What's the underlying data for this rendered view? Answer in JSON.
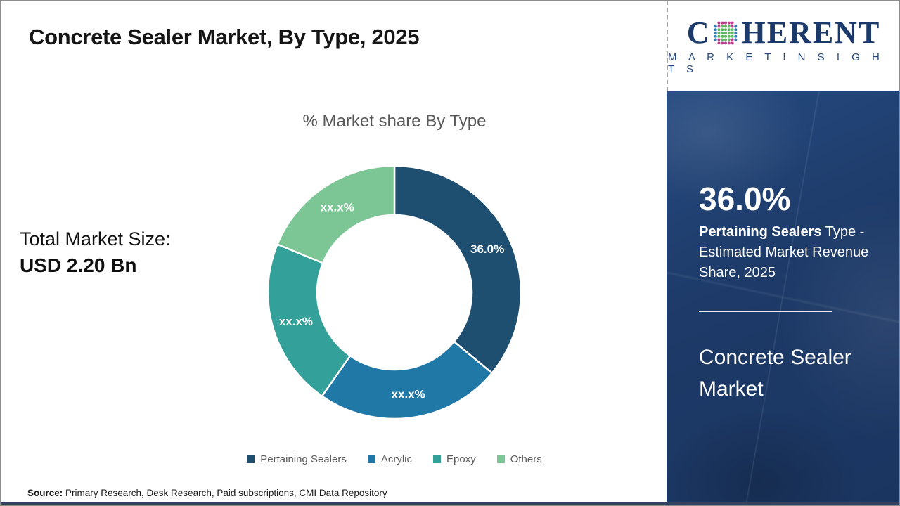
{
  "page": {
    "title": "Concrete Sealer Market, By Type, 2025",
    "source_label": "Source:",
    "source_text": " Primary Research, Desk Research, Paid subscriptions, CMI Data Repository"
  },
  "logo": {
    "name_pre": "C",
    "name_post": "HERENT",
    "subtitle": "M A R K E T   I N S I G H T S",
    "text_color": "#1b3a6b",
    "globe_colors": {
      "inner": "#5cb85c",
      "ring_top_bottom": "#c23c8e",
      "ring_sides": "#2e7db3"
    }
  },
  "left_panel": {
    "label": "Total Market Size:",
    "value": "USD 2.20 Bn"
  },
  "sidebar": {
    "stat_value": "36.0%",
    "desc_bold": "Pertaining Sealers",
    "desc_rest": " Type - Estimated Market Revenue Share, 2025",
    "market_name": "Concrete Sealer Market",
    "bg_color": "#1d3a68"
  },
  "chart_data": {
    "type": "pie",
    "subtype": "donut",
    "title": "% Market share By Type",
    "categories": [
      "Pertaining Sealers",
      "Acrylic",
      "Epoxy",
      "Others"
    ],
    "values": [
      36.0,
      23.7,
      21.5,
      18.8
    ],
    "slice_labels": [
      "36.0%",
      "xx.x%",
      "xx.x%",
      "xx.x%"
    ],
    "colors": [
      "#1f4f70",
      "#2078a6",
      "#33a09a",
      "#7cc695"
    ],
    "start_angle_deg": 0,
    "outer_radius": 180,
    "inner_radius": 110,
    "label_radius": 146,
    "legend_position": "bottom",
    "total": 100
  }
}
